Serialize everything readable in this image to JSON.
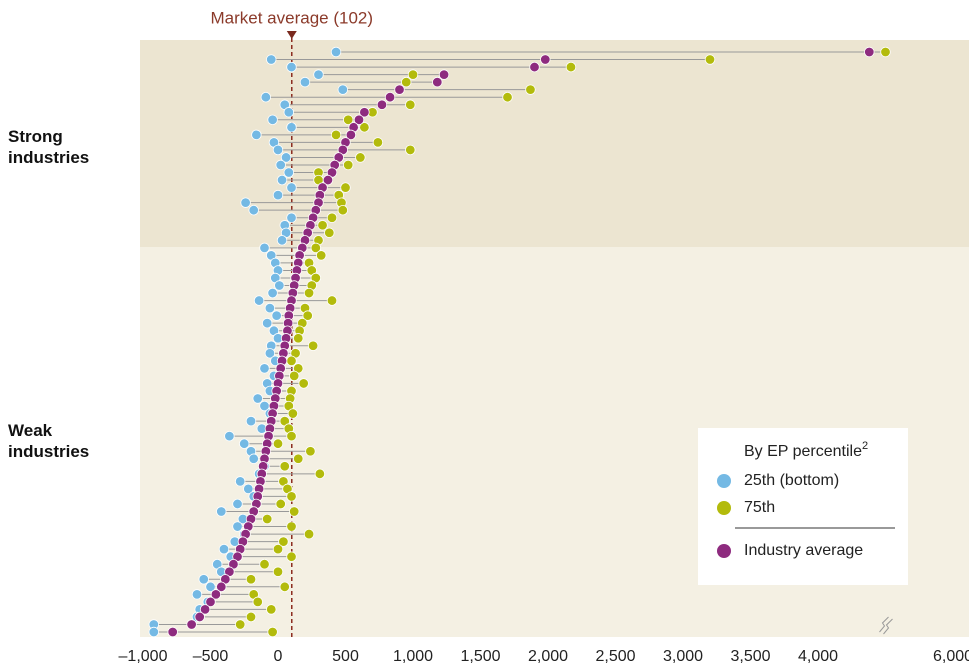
{
  "chart_data": {
    "type": "dot_range",
    "groups": [
      "Strong industries",
      "Weak industries"
    ],
    "market_average": {
      "value": 102,
      "label": "Market average (102)"
    },
    "legend_title": "By EP percentile",
    "legend_title_note": "2",
    "xlim": [
      -1000,
      6000
    ],
    "axis_break": [
      4500,
      5500
    ],
    "xticks": [
      {
        "value": -1000,
        "label": "–1,000"
      },
      {
        "value": -500,
        "label": "–500"
      },
      0,
      500,
      {
        "value": 1000,
        "label": "1,000"
      },
      {
        "value": 1500,
        "label": "1,500"
      },
      {
        "value": 2000,
        "label": "2,000"
      },
      {
        "value": 2500,
        "label": "2,500"
      },
      {
        "value": 3000,
        "label": "3,000"
      },
      {
        "value": 3500,
        "label": "3,500"
      },
      {
        "value": 4000,
        "label": "4,000"
      },
      {
        "value": 6000,
        "label": "6,000"
      }
    ],
    "series": [
      {
        "name": "25th (bottom)",
        "color": "#74b9e4",
        "values": [
          430,
          -50,
          100,
          300,
          200,
          480,
          -90,
          50,
          80,
          -40,
          100,
          -160,
          -30,
          0,
          60,
          20,
          80,
          30,
          100,
          0,
          -240,
          -180,
          100,
          50,
          60,
          30,
          -100,
          -50,
          -20,
          0,
          -20,
          10,
          -40,
          -140,
          -60,
          -10,
          -80,
          -30,
          0,
          -50,
          -60,
          -20,
          -100,
          -30,
          -80,
          -60,
          -150,
          -100,
          -60,
          -200,
          -120,
          -360,
          -250,
          -200,
          -180,
          -100,
          -140,
          -280,
          -220,
          -180,
          -300,
          -420,
          -260,
          -300,
          -250,
          -320,
          -400,
          -350,
          -450,
          -420,
          -550,
          -500,
          -600,
          -520,
          -580,
          -600,
          -920,
          -920
        ]
      },
      {
        "name": "75th",
        "color": "#b3bb0c",
        "values": [
          4510,
          3200,
          2170,
          1000,
          950,
          1870,
          1700,
          980,
          700,
          520,
          640,
          430,
          740,
          980,
          610,
          520,
          300,
          300,
          500,
          450,
          470,
          480,
          400,
          330,
          380,
          300,
          280,
          320,
          230,
          250,
          280,
          250,
          230,
          400,
          200,
          220,
          180,
          160,
          150,
          260,
          130,
          100,
          150,
          120,
          190,
          100,
          90,
          80,
          110,
          50,
          80,
          100,
          0,
          240,
          150,
          50,
          310,
          40,
          70,
          100,
          20,
          120,
          -80,
          100,
          230,
          40,
          0,
          100,
          -100,
          0,
          -200,
          50,
          -180,
          -150,
          -50,
          -200,
          -280,
          -40
        ]
      },
      {
        "name": "Industry average",
        "color": "#8e2b7f",
        "values": [
          4380,
          1980,
          1900,
          1230,
          1180,
          900,
          830,
          770,
          640,
          600,
          560,
          540,
          500,
          480,
          450,
          420,
          400,
          370,
          330,
          310,
          300,
          280,
          260,
          240,
          220,
          200,
          180,
          160,
          150,
          140,
          130,
          120,
          110,
          100,
          90,
          80,
          75,
          70,
          60,
          50,
          40,
          30,
          20,
          10,
          0,
          -10,
          -20,
          -30,
          -40,
          -50,
          -60,
          -70,
          -80,
          -90,
          -100,
          -110,
          -120,
          -130,
          -140,
          -150,
          -160,
          -180,
          -200,
          -220,
          -240,
          -260,
          -280,
          -300,
          -330,
          -360,
          -390,
          -420,
          -460,
          -500,
          -540,
          -580,
          -640,
          -780
        ]
      }
    ]
  }
}
